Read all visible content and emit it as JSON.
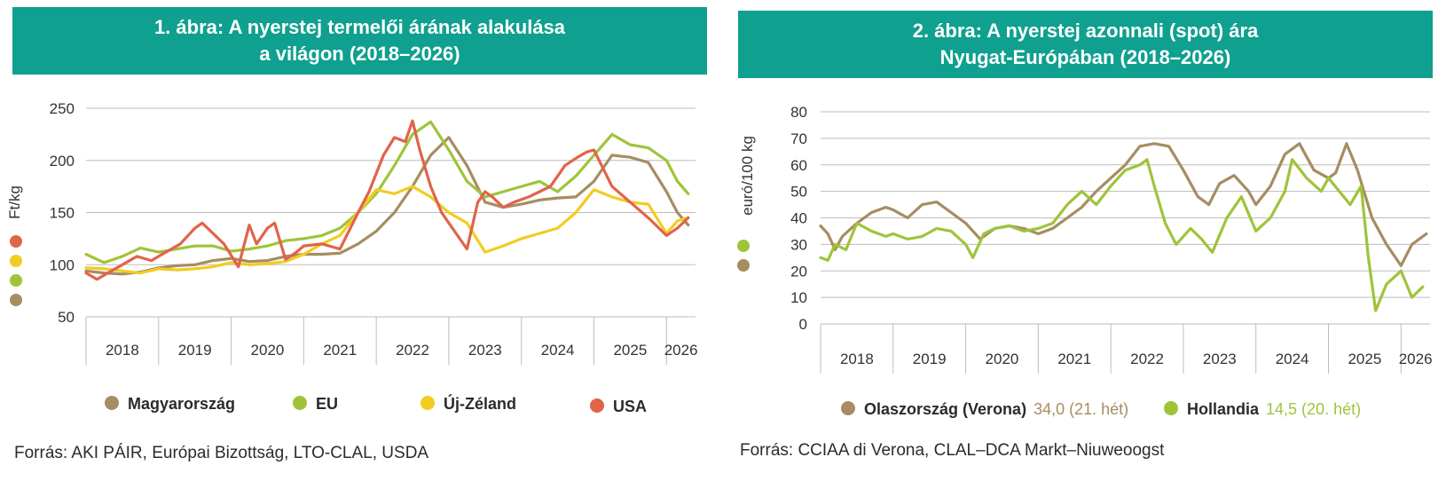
{
  "colors": {
    "banner": "#0fa08f",
    "magyarorszag": "#a68d62",
    "eu": "#9fc43a",
    "ujzeland": "#f2cc21",
    "usa": "#e0644a",
    "olasz": "#a68d62",
    "holland": "#9fc43a"
  },
  "chart1": {
    "title_line1": "1. ábra: A nyerstej termelői árának alakulása",
    "title_line2": "a világon (2018–2026)",
    "ylabel": "Ft/kg",
    "legend": [
      {
        "label": "Magyarország",
        "color": "#a68d62"
      },
      {
        "label": "EU",
        "color": "#9fc43a"
      },
      {
        "label": "Új-Zéland",
        "color": "#f2cc21"
      },
      {
        "label": "USA",
        "color": "#e0644a"
      }
    ],
    "source": "Forrás: AKI PÁIR, Európai Bizottság, LTO-CLAL, USDA"
  },
  "chart2": {
    "title_line1": "2. ábra: A nyerstej azonnali (spot) ára",
    "title_line2": "Nyugat-Európában (2018–2026)",
    "ylabel": "euró/100 kg",
    "legend": [
      {
        "label": "Olaszország (Verona)",
        "note": "34,0 (21. hét)",
        "color": "#a68d62"
      },
      {
        "label": "Hollandia",
        "note": "14,5 (20. hét)",
        "color": "#9fc43a"
      }
    ],
    "source": "Forrás: CCIAA di Verona, CLAL–DCA Markt–Niuweoogst"
  },
  "chart_data": [
    {
      "type": "line",
      "title": "1. ábra: A nyerstej termelői árának alakulása a világon (2018–2026)",
      "ylabel": "Ft/kg",
      "ylim": [
        50,
        250
      ],
      "yticks": [
        50,
        100,
        150,
        200,
        250
      ],
      "xlim": [
        2018.0,
        2026.4
      ],
      "categories": [
        "2018",
        "2019",
        "2020",
        "2021",
        "2022",
        "2023",
        "2024",
        "2025",
        "2026"
      ],
      "grid": true,
      "series": [
        {
          "name": "Magyarország",
          "color": "#a68d62",
          "x": [
            2018.0,
            2018.25,
            2018.5,
            2018.75,
            2019.0,
            2019.25,
            2019.5,
            2019.75,
            2020.0,
            2020.25,
            2020.5,
            2020.75,
            2021.0,
            2021.25,
            2021.5,
            2021.75,
            2022.0,
            2022.25,
            2022.5,
            2022.75,
            2023.0,
            2023.25,
            2023.5,
            2023.75,
            2024.0,
            2024.25,
            2024.5,
            2024.75,
            2025.0,
            2025.25,
            2025.5,
            2025.75,
            2026.0,
            2026.15,
            2026.3
          ],
          "y": [
            94,
            92,
            91,
            93,
            97,
            99,
            100,
            104,
            106,
            103,
            104,
            108,
            110,
            110,
            111,
            120,
            132,
            150,
            175,
            205,
            222,
            195,
            160,
            155,
            158,
            162,
            164,
            165,
            180,
            205,
            203,
            198,
            170,
            150,
            138
          ]
        },
        {
          "name": "EU",
          "color": "#9fc43a",
          "x": [
            2018.0,
            2018.25,
            2018.5,
            2018.75,
            2019.0,
            2019.25,
            2019.5,
            2019.75,
            2020.0,
            2020.25,
            2020.5,
            2020.75,
            2021.0,
            2021.25,
            2021.5,
            2021.75,
            2022.0,
            2022.25,
            2022.5,
            2022.75,
            2023.0,
            2023.25,
            2023.5,
            2023.75,
            2024.0,
            2024.25,
            2024.5,
            2024.75,
            2025.0,
            2025.25,
            2025.5,
            2025.75,
            2026.0,
            2026.15,
            2026.3
          ],
          "y": [
            110,
            102,
            108,
            116,
            112,
            115,
            118,
            118,
            113,
            115,
            118,
            123,
            125,
            128,
            135,
            150,
            168,
            195,
            225,
            237,
            210,
            180,
            165,
            170,
            175,
            180,
            170,
            185,
            205,
            225,
            215,
            212,
            200,
            180,
            168
          ]
        },
        {
          "name": "Új-Zéland",
          "color": "#f2cc21",
          "x": [
            2018.0,
            2018.25,
            2018.5,
            2018.75,
            2019.0,
            2019.25,
            2019.5,
            2019.75,
            2020.0,
            2020.25,
            2020.5,
            2020.75,
            2021.0,
            2021.25,
            2021.5,
            2021.75,
            2022.0,
            2022.25,
            2022.5,
            2022.75,
            2023.0,
            2023.25,
            2023.5,
            2023.75,
            2024.0,
            2024.25,
            2024.5,
            2024.75,
            2025.0,
            2025.25,
            2025.5,
            2025.75,
            2026.0,
            2026.15,
            2026.3
          ],
          "y": [
            97,
            96,
            94,
            92,
            96,
            95,
            96,
            98,
            102,
            100,
            101,
            103,
            110,
            120,
            128,
            150,
            172,
            168,
            175,
            165,
            150,
            140,
            112,
            118,
            125,
            130,
            135,
            150,
            172,
            165,
            160,
            158,
            130,
            142,
            145
          ]
        },
        {
          "name": "USA",
          "color": "#e0644a",
          "x": [
            2018.0,
            2018.15,
            2018.3,
            2018.5,
            2018.7,
            2018.9,
            2019.1,
            2019.3,
            2019.5,
            2019.6,
            2019.75,
            2019.9,
            2020.1,
            2020.25,
            2020.35,
            2020.5,
            2020.6,
            2020.75,
            2020.9,
            2021.0,
            2021.25,
            2021.5,
            2021.75,
            2021.9,
            2022.1,
            2022.25,
            2022.4,
            2022.5,
            2022.6,
            2022.75,
            2022.9,
            2023.1,
            2023.25,
            2023.4,
            2023.5,
            2023.6,
            2023.75,
            2023.9,
            2024.1,
            2024.25,
            2024.4,
            2024.5,
            2024.6,
            2024.75,
            2024.9,
            2025.0,
            2025.25,
            2025.5,
            2025.75,
            2026.0,
            2026.15,
            2026.3
          ],
          "y": [
            92,
            86,
            92,
            100,
            108,
            104,
            112,
            120,
            135,
            140,
            130,
            120,
            98,
            138,
            120,
            135,
            140,
            105,
            112,
            118,
            120,
            115,
            150,
            170,
            205,
            222,
            218,
            238,
            210,
            175,
            150,
            130,
            115,
            160,
            170,
            165,
            155,
            160,
            165,
            170,
            175,
            185,
            195,
            202,
            208,
            210,
            175,
            160,
            145,
            128,
            135,
            145
          ]
        }
      ]
    },
    {
      "type": "line",
      "title": "2. ábra: A nyerstej azonnali (spot) ára Nyugat-Európában (2018–2026)",
      "ylabel": "euró/100 kg",
      "ylim": [
        0,
        80
      ],
      "yticks": [
        0,
        10,
        20,
        30,
        40,
        50,
        60,
        70,
        80
      ],
      "xlim": [
        2018.0,
        2026.4
      ],
      "categories": [
        "2018",
        "2019",
        "2020",
        "2021",
        "2022",
        "2023",
        "2024",
        "2025",
        "2026"
      ],
      "grid": true,
      "series": [
        {
          "name": "Olaszország (Verona)",
          "color": "#a68d62",
          "x": [
            2018.0,
            2018.1,
            2018.2,
            2018.3,
            2018.5,
            2018.7,
            2018.9,
            2019.0,
            2019.2,
            2019.4,
            2019.6,
            2019.8,
            2020.0,
            2020.2,
            2020.4,
            2020.6,
            2020.8,
            2021.0,
            2021.2,
            2021.4,
            2021.6,
            2021.8,
            2022.0,
            2022.2,
            2022.4,
            2022.6,
            2022.8,
            2023.0,
            2023.2,
            2023.35,
            2023.5,
            2023.7,
            2023.9,
            2024.0,
            2024.2,
            2024.4,
            2024.6,
            2024.8,
            2025.0,
            2025.1,
            2025.25,
            2025.4,
            2025.6,
            2025.8,
            2026.0,
            2026.15,
            2026.35
          ],
          "y": [
            37,
            34,
            28,
            33,
            38,
            42,
            44,
            43,
            40,
            45,
            46,
            42,
            38,
            32,
            36,
            37,
            36,
            34,
            36,
            40,
            44,
            50,
            55,
            60,
            67,
            68,
            67,
            58,
            48,
            45,
            53,
            56,
            50,
            45,
            52,
            64,
            68,
            58,
            55,
            57,
            68,
            58,
            40,
            30,
            22,
            30,
            34
          ]
        },
        {
          "name": "Hollandia",
          "color": "#9fc43a",
          "x": [
            2018.0,
            2018.1,
            2018.2,
            2018.35,
            2018.5,
            2018.7,
            2018.9,
            2019.0,
            2019.2,
            2019.4,
            2019.6,
            2019.8,
            2020.0,
            2020.1,
            2020.25,
            2020.4,
            2020.6,
            2020.8,
            2021.0,
            2021.2,
            2021.4,
            2021.6,
            2021.8,
            2022.0,
            2022.2,
            2022.4,
            2022.5,
            2022.6,
            2022.75,
            2022.9,
            2023.1,
            2023.25,
            2023.4,
            2023.6,
            2023.8,
            2024.0,
            2024.2,
            2024.4,
            2024.5,
            2024.7,
            2024.9,
            2025.0,
            2025.15,
            2025.3,
            2025.45,
            2025.55,
            2025.65,
            2025.8,
            2026.0,
            2026.15,
            2026.3
          ],
          "y": [
            25,
            24,
            30,
            28,
            38,
            35,
            33,
            34,
            32,
            33,
            36,
            35,
            30,
            25,
            34,
            36,
            37,
            35,
            36,
            38,
            45,
            50,
            45,
            52,
            58,
            60,
            62,
            52,
            38,
            30,
            36,
            32,
            27,
            40,
            48,
            35,
            40,
            50,
            62,
            55,
            50,
            55,
            50,
            45,
            52,
            25,
            5,
            15,
            20,
            10,
            14
          ]
        }
      ]
    }
  ]
}
